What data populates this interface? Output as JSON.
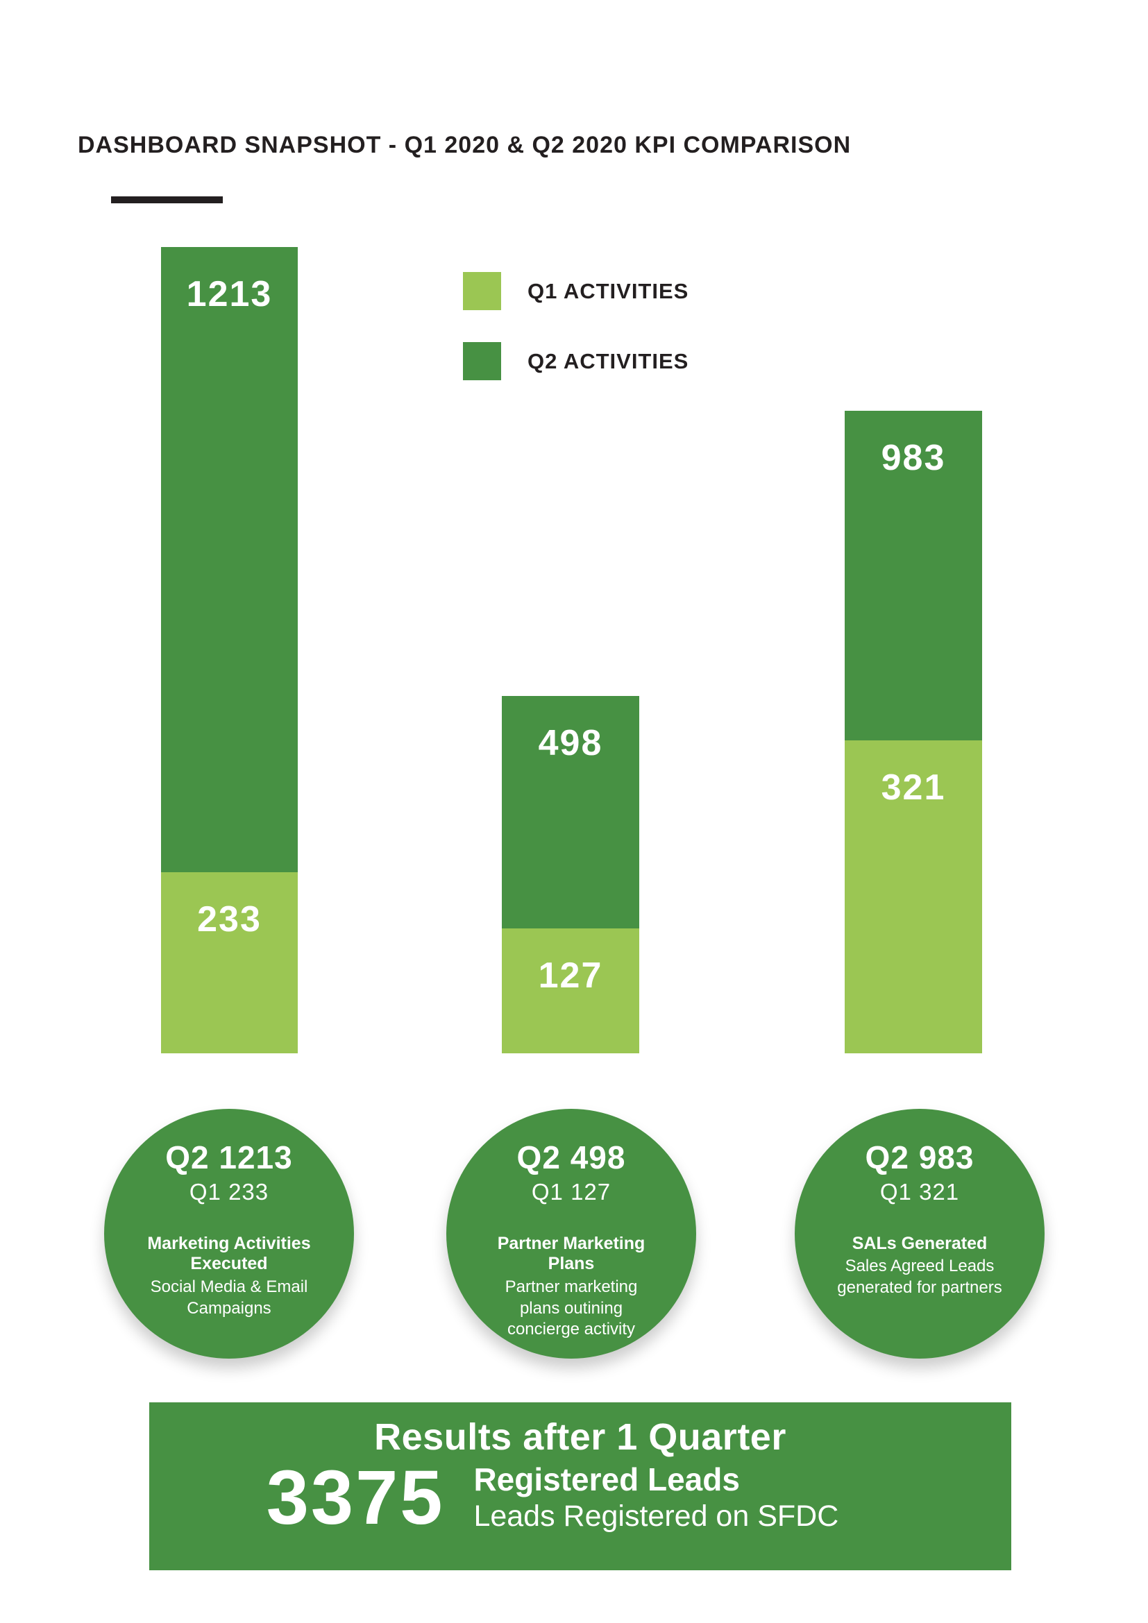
{
  "page": {
    "title": "DASHBOARD SNAPSHOT - Q1 2020 & Q2 2020 KPI COMPARISON"
  },
  "colors": {
    "q1_green": "#9BC653",
    "q2_green": "#479143",
    "text_dark": "#231F20",
    "text_white": "#FFFFFF"
  },
  "chart_data": {
    "type": "bar",
    "stacked": true,
    "title": "DASHBOARD SNAPSHOT - Q1 2020 & Q2 2020 KPI COMPARISON",
    "categories": [
      "Marketing Activities Executed",
      "Partner Marketing Plans",
      "SALs Generated"
    ],
    "series": [
      {
        "name": "Q1 ACTIVITIES",
        "color": "#9BC653",
        "values": [
          233,
          127,
          321
        ]
      },
      {
        "name": "Q2 ACTIVITIES",
        "color": "#479143",
        "values": [
          1213,
          498,
          983
        ]
      }
    ],
    "legend_position": "top",
    "grid": false,
    "value_labels": "on-segments"
  },
  "circles": [
    {
      "q2": "Q2 1213",
      "q1": "Q1 233",
      "heading": "Marketing Activities\nExecuted",
      "subtext": "Social Media & Email\nCampaigns"
    },
    {
      "q2": "Q2 498",
      "q1": "Q1 127",
      "heading": "Partner Marketing\nPlans",
      "subtext": "Partner marketing\nplans outining\nconcierge activity"
    },
    {
      "q2": "Q2 983",
      "q1": "Q1 321",
      "heading": "SALs Generated",
      "subtext": "Sales Agreed Leads\ngenerated for partners"
    }
  ],
  "banner": {
    "title": "Results after 1 Quarter",
    "value": "3375",
    "label_bold": "Registered Leads",
    "label_sub": "Leads Registered on SFDC"
  }
}
